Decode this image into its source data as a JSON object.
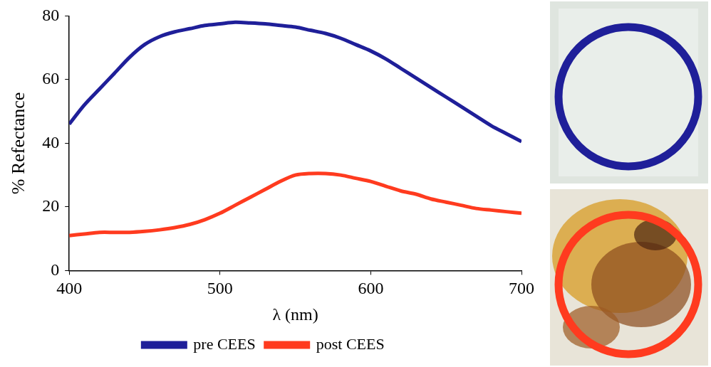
{
  "chart_data": {
    "type": "line",
    "x_label": "λ (nm)",
    "y_label": "% Refectance",
    "x": [
      400,
      410,
      420,
      430,
      440,
      450,
      460,
      470,
      480,
      490,
      500,
      510,
      520,
      530,
      540,
      550,
      560,
      570,
      580,
      590,
      600,
      610,
      620,
      630,
      640,
      650,
      660,
      670,
      680,
      690,
      700
    ],
    "series": [
      {
        "name": "pre CEES",
        "color": "#1f1f99",
        "values": [
          46,
          52,
          57,
          62,
          67,
          71,
          73.5,
          75,
          76,
          77,
          77.5,
          78,
          77.8,
          77.5,
          77,
          76.5,
          75.5,
          74.5,
          73,
          71,
          69,
          66.5,
          63.5,
          60.5,
          57.5,
          54.5,
          51.5,
          48.5,
          45.5,
          43,
          40.5
        ]
      },
      {
        "name": "post CEES",
        "color": "#ff3b1f",
        "values": [
          11,
          11.5,
          12,
          12,
          12,
          12.3,
          12.8,
          13.5,
          14.5,
          16,
          18,
          20.5,
          23,
          25.5,
          28,
          30,
          30.5,
          30.5,
          30,
          29,
          28,
          26.5,
          25,
          24,
          22.5,
          21.5,
          20.5,
          19.5,
          19,
          18.5,
          18
        ]
      }
    ],
    "xlim": [
      400,
      700
    ],
    "xticks": [
      400,
      500,
      600,
      700
    ],
    "ylim": [
      0,
      80
    ],
    "yticks": [
      0,
      20,
      40,
      60,
      80
    ],
    "grid": false,
    "legend": "bottom"
  }
}
